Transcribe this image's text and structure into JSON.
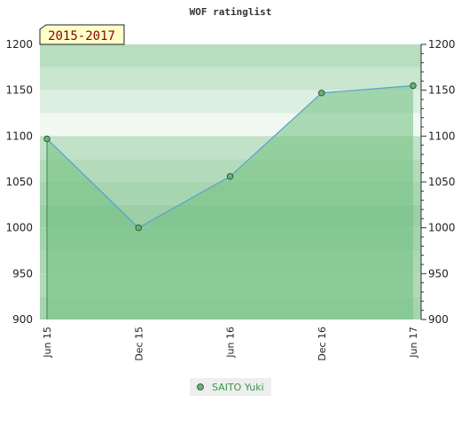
{
  "chart_data": {
    "type": "area",
    "title": "WOF ratinglist",
    "period_label": "2015-2017",
    "categories": [
      "Jun 15",
      "Dec 15",
      "Jun 16",
      "Dec 16",
      "Jun 17"
    ],
    "series": [
      {
        "name": "SAITO Yuki",
        "values": [
          1097,
          1000,
          1056,
          1147,
          1155
        ]
      }
    ],
    "yticks": [
      900,
      950,
      1000,
      1050,
      1100,
      1150,
      1200
    ],
    "ylim": [
      900,
      1200
    ],
    "secondary_y_axis": true,
    "grid": true,
    "legend_position": "bottom-center"
  },
  "colors": {
    "line": "#5aa0d0",
    "fill": "#6fbf80",
    "marker": "#5fb870",
    "badge_bg": "#ffffc8"
  }
}
